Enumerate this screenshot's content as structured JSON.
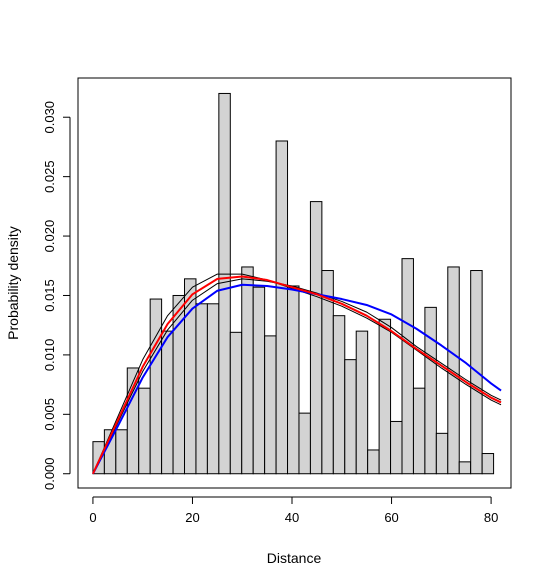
{
  "chart_data": {
    "type": "bar",
    "title": "",
    "xlabel": "Distance",
    "ylabel": "Probability density",
    "xlim": [
      -3,
      84
    ],
    "ylim": [
      -0.0012,
      0.0333
    ],
    "x_ticks": [
      0,
      20,
      40,
      60,
      80
    ],
    "x_tick_labels": [
      "0",
      "20",
      "40",
      "60",
      "80"
    ],
    "y_ticks": [
      0.0,
      0.005,
      0.01,
      0.015,
      0.02,
      0.025,
      0.03
    ],
    "y_tick_labels": [
      "0.000",
      "0.005",
      "0.010",
      "0.015",
      "0.020",
      "0.025",
      "0.030"
    ],
    "grid": false,
    "colors": {
      "bar_fill": "#d3d3d3",
      "bar_stroke": "#000000",
      "red_curve": "#ff0000",
      "blue_curve": "#0000ff",
      "black_curve": "#000000"
    },
    "histogram": {
      "bin_width": 2.3,
      "bin_start": 0,
      "densities": [
        0.0027,
        0.0037,
        0.0037,
        0.0089,
        0.0072,
        0.0147,
        0.012,
        0.015,
        0.0164,
        0.0143,
        0.0143,
        0.032,
        0.0119,
        0.0174,
        0.0157,
        0.0116,
        0.028,
        0.0158,
        0.0051,
        0.0229,
        0.0171,
        0.0133,
        0.0096,
        0.012,
        0.002,
        0.013,
        0.0044,
        0.0181,
        0.0072,
        0.014,
        0.0034,
        0.0174,
        0.001,
        0.0171,
        0.0017
      ]
    },
    "series": [
      {
        "color": "red",
        "x": [
          0,
          5,
          10,
          15,
          20,
          25,
          30,
          35,
          40,
          45,
          50,
          55,
          60,
          65,
          70,
          75,
          80,
          82
        ],
        "y": [
          0.0,
          0.0045,
          0.009,
          0.0126,
          0.0151,
          0.0164,
          0.0166,
          0.0163,
          0.0157,
          0.0151,
          0.0143,
          0.0133,
          0.012,
          0.0105,
          0.0091,
          0.0077,
          0.0064,
          0.006
        ]
      },
      {
        "color": "blue",
        "x": [
          0,
          5,
          10,
          15,
          20,
          25,
          30,
          35,
          40,
          45,
          50,
          55,
          60,
          65,
          70,
          75,
          80,
          82
        ],
        "y": [
          0.0,
          0.004,
          0.0081,
          0.0115,
          0.0139,
          0.0154,
          0.0159,
          0.0158,
          0.0155,
          0.0151,
          0.0147,
          0.0142,
          0.0134,
          0.0122,
          0.0108,
          0.0093,
          0.0076,
          0.007
        ]
      },
      {
        "color": "black",
        "x": [
          0,
          5,
          10,
          15,
          20,
          25,
          30,
          35,
          40,
          45,
          50,
          55,
          60,
          65,
          70,
          75,
          80,
          82
        ],
        "y": [
          0.0,
          0.0048,
          0.0096,
          0.0133,
          0.0157,
          0.0168,
          0.0168,
          0.0163,
          0.0156,
          0.0149,
          0.0141,
          0.0131,
          0.0119,
          0.0104,
          0.0089,
          0.0075,
          0.0062,
          0.0058
        ]
      },
      {
        "color": "black",
        "x": [
          0,
          5,
          10,
          15,
          20,
          25,
          30,
          35,
          40,
          45,
          50,
          55,
          60,
          65,
          70,
          75,
          80,
          82
        ],
        "y": [
          0.0,
          0.0043,
          0.0086,
          0.0121,
          0.0146,
          0.016,
          0.0164,
          0.0162,
          0.0158,
          0.0152,
          0.0145,
          0.0136,
          0.0123,
          0.0107,
          0.0093,
          0.0079,
          0.0066,
          0.0062
        ]
      }
    ]
  }
}
